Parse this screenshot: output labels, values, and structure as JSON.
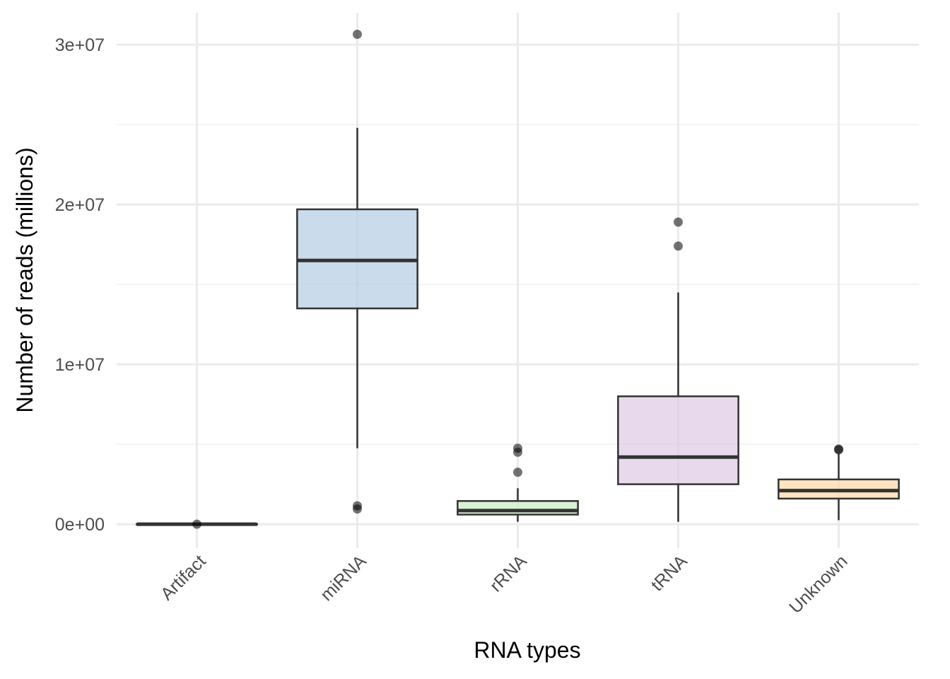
{
  "chart_data": {
    "type": "boxplot",
    "xlabel": "RNA types",
    "ylabel": "Number of reads (millions)",
    "ylim": [
      -1500000,
      32000000
    ],
    "yticks": [
      {
        "value": 0,
        "label": "0e+00"
      },
      {
        "value": 10000000,
        "label": "1e+07"
      },
      {
        "value": 20000000,
        "label": "2e+07"
      },
      {
        "value": 30000000,
        "label": "3e+07"
      }
    ],
    "grid": true,
    "legend": "none",
    "categories": [
      "Artifact",
      "miRNA",
      "rRNA",
      "tRNA",
      "Unknown"
    ],
    "boxes": [
      {
        "category": "Artifact",
        "color": "#000000",
        "min": 0,
        "q1": 0,
        "median": 0,
        "q3": 0,
        "max": 0,
        "outliers": [
          0
        ]
      },
      {
        "category": "miRNA",
        "color": "#B3CDE3",
        "min": 4750000,
        "q1": 13500000,
        "median": 16500000,
        "q3": 19700000,
        "max": 24800000,
        "outliers": [
          30650000,
          1150000,
          950000
        ]
      },
      {
        "category": "rRNA",
        "color": "#CCEBC5",
        "min": 150000,
        "q1": 600000,
        "median": 850000,
        "q3": 1450000,
        "max": 2250000,
        "outliers": [
          4750000,
          4500000,
          3250000
        ]
      },
      {
        "category": "tRNA",
        "color": "#DECBE4",
        "min": 150000,
        "q1": 2500000,
        "median": 4200000,
        "q3": 8000000,
        "max": 14500000,
        "outliers": [
          18900000,
          17400000
        ]
      },
      {
        "category": "Unknown",
        "color": "#FED9A6",
        "min": 250000,
        "q1": 1600000,
        "median": 2100000,
        "q3": 2800000,
        "max": 4400000,
        "outliers": [
          4700000,
          4650000
        ]
      }
    ]
  }
}
